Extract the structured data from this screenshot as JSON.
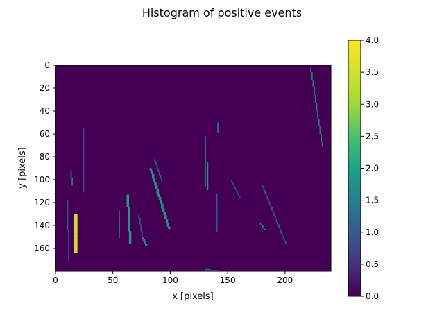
{
  "chart_data": {
    "type": "heatmap",
    "title": "Histogram of positive events",
    "xlabel": "x [pixels]",
    "ylabel": "y [pixels]",
    "xlim": [
      0,
      240
    ],
    "ylim": [
      180,
      0
    ],
    "xticks": [
      0,
      50,
      100,
      150,
      200
    ],
    "yticks": [
      0,
      20,
      40,
      60,
      80,
      100,
      120,
      140,
      160
    ],
    "colormap": "viridis",
    "colorbar": {
      "range": [
        0.0,
        4.0
      ],
      "ticks": [
        "0.0",
        "0.5",
        "1.0",
        "1.5",
        "2.0",
        "2.5",
        "3.0",
        "3.5",
        "4.0"
      ]
    },
    "background_value": 0,
    "strokes": [
      {
        "from": [
          16,
          130
        ],
        "to": [
          16,
          163
        ],
        "value": 3.6,
        "width": 3
      },
      {
        "from": [
          13,
          92
        ],
        "to": [
          14,
          104
        ],
        "value": 1.3,
        "width": 1
      },
      {
        "from": [
          10,
          118
        ],
        "to": [
          11,
          170
        ],
        "value": 0.9,
        "width": 1
      },
      {
        "from": [
          62,
          113
        ],
        "to": [
          64,
          155
        ],
        "value": 1.9,
        "width": 2
      },
      {
        "from": [
          55,
          127
        ],
        "to": [
          55,
          150
        ],
        "value": 1.2,
        "width": 1
      },
      {
        "from": [
          75,
          150
        ],
        "to": [
          78,
          157
        ],
        "value": 1.5,
        "width": 2
      },
      {
        "from": [
          82,
          90
        ],
        "to": [
          98,
          142
        ],
        "value": 1.8,
        "width": 2
      },
      {
        "from": [
          86,
          82
        ],
        "to": [
          92,
          100
        ],
        "value": 1.1,
        "width": 1
      },
      {
        "from": [
          130,
          62
        ],
        "to": [
          130,
          105
        ],
        "value": 1.4,
        "width": 1
      },
      {
        "from": [
          132,
          85
        ],
        "to": [
          132,
          108
        ],
        "value": 1.9,
        "width": 1
      },
      {
        "from": [
          141,
          50
        ],
        "to": [
          141,
          58
        ],
        "value": 1.3,
        "width": 1
      },
      {
        "from": [
          140,
          112
        ],
        "to": [
          140,
          145
        ],
        "value": 1.0,
        "width": 1
      },
      {
        "from": [
          178,
          138
        ],
        "to": [
          182,
          143
        ],
        "value": 1.6,
        "width": 1
      },
      {
        "from": [
          222,
          2
        ],
        "to": [
          232,
          70
        ],
        "value": 1.4,
        "width": 1
      },
      {
        "from": [
          130,
          178
        ],
        "to": [
          140,
          179
        ],
        "value": 1.0,
        "width": 1
      },
      {
        "from": [
          180,
          105
        ],
        "to": [
          200,
          155
        ],
        "value": 0.9,
        "width": 1
      },
      {
        "from": [
          153,
          100
        ],
        "to": [
          160,
          115
        ],
        "value": 0.8,
        "width": 1
      },
      {
        "from": [
          72,
          130
        ],
        "to": [
          75,
          148
        ],
        "value": 0.9,
        "width": 1
      },
      {
        "from": [
          24,
          55
        ],
        "to": [
          24,
          110
        ],
        "value": 0.7,
        "width": 1
      }
    ]
  }
}
